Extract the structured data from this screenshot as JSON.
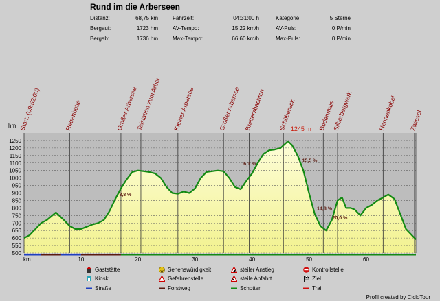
{
  "title": "Rund im die Arberseen",
  "stats": [
    {
      "label": "Distanz:",
      "value": "68,75 km"
    },
    {
      "label": "Bergauf:",
      "value": "1723 hm"
    },
    {
      "label": "Bergab:",
      "value": "1736 hm"
    },
    {
      "label": "Fahrzeit:",
      "value": "04:31:00 h"
    },
    {
      "label": "AV-Tempo:",
      "value": "15,22 km/h"
    },
    {
      "label": "Max-Tempo:",
      "value": "66,60 km/h"
    },
    {
      "label": "Kategorie:",
      "value": "5 Sterne"
    },
    {
      "label": "AV-Puls:",
      "value": "0 P/min"
    },
    {
      "label": "Max-Puls:",
      "value": "0 P/min"
    }
  ],
  "chart_data": {
    "type": "area",
    "ylabel": "hm",
    "xlabel": "km",
    "ylim": [
      500,
      1300
    ],
    "xlim": [
      0,
      68.75
    ],
    "y_ticks": [
      500,
      550,
      600,
      650,
      700,
      750,
      800,
      850,
      900,
      950,
      1000,
      1050,
      1100,
      1150,
      1200,
      1250
    ],
    "x_ticks": [
      10,
      20,
      30,
      40,
      50,
      60
    ],
    "max_label": "1245 m",
    "max_point": {
      "x": 46.3,
      "y": 1245
    },
    "profile": [
      [
        0,
        600
      ],
      [
        1,
        620
      ],
      [
        2,
        660
      ],
      [
        3,
        700
      ],
      [
        4,
        720
      ],
      [
        4.8,
        745
      ],
      [
        5.6,
        770
      ],
      [
        6.3,
        745
      ],
      [
        7,
        720
      ],
      [
        8,
        680
      ],
      [
        9,
        660
      ],
      [
        10,
        660
      ],
      [
        11,
        675
      ],
      [
        12,
        690
      ],
      [
        13,
        700
      ],
      [
        14,
        720
      ],
      [
        15,
        780
      ],
      [
        16,
        860
      ],
      [
        17,
        930
      ],
      [
        18,
        990
      ],
      [
        19,
        1040
      ],
      [
        20,
        1050
      ],
      [
        21,
        1045
      ],
      [
        22,
        1040
      ],
      [
        23,
        1030
      ],
      [
        24,
        1000
      ],
      [
        25,
        940
      ],
      [
        26,
        900
      ],
      [
        27,
        895
      ],
      [
        28,
        910
      ],
      [
        29,
        900
      ],
      [
        30,
        930
      ],
      [
        31,
        1000
      ],
      [
        32,
        1040
      ],
      [
        33,
        1045
      ],
      [
        34,
        1050
      ],
      [
        35,
        1045
      ],
      [
        36,
        1000
      ],
      [
        37,
        940
      ],
      [
        38,
        925
      ],
      [
        39,
        980
      ],
      [
        40,
        1030
      ],
      [
        41,
        1100
      ],
      [
        42,
        1160
      ],
      [
        43,
        1185
      ],
      [
        44,
        1190
      ],
      [
        45,
        1200
      ],
      [
        46.3,
        1245
      ],
      [
        47,
        1220
      ],
      [
        48,
        1150
      ],
      [
        49,
        1050
      ],
      [
        50,
        900
      ],
      [
        51,
        760
      ],
      [
        52,
        680
      ],
      [
        53,
        650
      ],
      [
        54,
        720
      ],
      [
        55,
        850
      ],
      [
        55.8,
        870
      ],
      [
        56.5,
        800
      ],
      [
        57.3,
        800
      ],
      [
        58,
        790
      ],
      [
        59,
        750
      ],
      [
        60,
        800
      ],
      [
        61,
        820
      ],
      [
        62,
        850
      ],
      [
        63,
        870
      ],
      [
        63.9,
        890
      ],
      [
        65,
        860
      ],
      [
        66,
        760
      ],
      [
        67,
        660
      ],
      [
        68,
        620
      ],
      [
        68.75,
        590
      ]
    ],
    "waypoints": [
      {
        "label": "Start: (09:52:00)",
        "x": 0
      },
      {
        "label": "Regenhütte",
        "x": 8
      },
      {
        "label": "Großer Arbersee",
        "x": 17
      },
      {
        "label": "Talstation zum Arber",
        "x": 20.5
      },
      {
        "label": "Kleiner Arbersee",
        "x": 27
      },
      {
        "label": "Großer Arbersee",
        "x": 35
      },
      {
        "label": "Brettersbachten",
        "x": 39.5
      },
      {
        "label": "Schöbereck",
        "x": 45.5
      },
      {
        "label": "Bodenmais",
        "x": 52.5
      },
      {
        "label": "Silberbergwerk",
        "x": 55
      },
      {
        "label": "Hennenkobel",
        "x": 63
      },
      {
        "label": "Zwiesel",
        "x": 68.5
      }
    ],
    "grade_labels": [
      {
        "text": "8,8 %",
        "x": 16.7,
        "y": 880
      },
      {
        "text": "6,1 %",
        "x": 38.5,
        "y": 1085
      },
      {
        "text": "15,5 %",
        "x": 48.8,
        "y": 1105
      },
      {
        "text": "14,8 %",
        "x": 51.4,
        "y": 785
      },
      {
        "text": "20,0 %",
        "x": 54.1,
        "y": 725
      }
    ],
    "road_segments": [
      {
        "type": "Straße",
        "from": 0,
        "to": 3
      },
      {
        "type": "Straße",
        "from": 6.5,
        "to": 10
      },
      {
        "type": "Forstweg",
        "from": 3,
        "to": 6.5
      },
      {
        "type": "Forstweg",
        "from": 10,
        "to": 17
      },
      {
        "type": "Schotter",
        "from": 17,
        "to": 68.75
      }
    ],
    "colors": {
      "fill": "#f2f290",
      "line": "#138a13",
      "grid": "#5c5c5c",
      "max": "#c81a0a",
      "label": "#8b0000",
      "strasse": "#1f3fbf",
      "forstweg": "#5a1a10",
      "schotter": "#138a13",
      "trail": "#d01010"
    }
  },
  "legend": [
    {
      "label": "Gaststätte",
      "icon": "house-icon"
    },
    {
      "label": "Sehenswürdigkeit",
      "icon": "smiley-icon"
    },
    {
      "label": "steiler Anstieg",
      "icon": "warning-up-icon"
    },
    {
      "label": "Kontrollstelle",
      "icon": "stop-icon"
    },
    {
      "label": "Kiosk",
      "icon": "kiosk-icon"
    },
    {
      "label": "Gefahrenstelle",
      "icon": "danger-icon"
    },
    {
      "label": "steile Abfahrt",
      "icon": "warning-down-icon"
    },
    {
      "label": "Ziel",
      "icon": "flag-icon"
    },
    {
      "label": "Straße",
      "icon": "line-blue-icon"
    },
    {
      "label": "Forstweg",
      "icon": "line-brown-icon"
    },
    {
      "label": "Schotter",
      "icon": "line-green-icon"
    },
    {
      "label": "Trail",
      "icon": "line-red-icon"
    }
  ],
  "credit": "Profil created by CicloTour"
}
